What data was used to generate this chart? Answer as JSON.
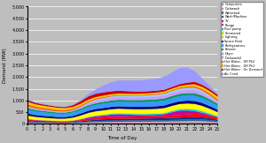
{
  "xlabel": "Time of Day",
  "ylabel": "Demand (MW)",
  "xlim": [
    0,
    25
  ],
  "ylim": [
    0,
    5000
  ],
  "yticks": [
    0,
    500,
    1000,
    1500,
    2000,
    2500,
    3000,
    3500,
    4000,
    4500,
    5000
  ],
  "xticks": [
    0,
    1,
    2,
    3,
    4,
    5,
    6,
    7,
    8,
    9,
    10,
    11,
    12,
    13,
    14,
    15,
    16,
    17,
    18,
    19,
    20,
    21,
    22,
    23,
    24,
    25
  ],
  "hours": [
    0,
    1,
    2,
    3,
    4,
    5,
    6,
    7,
    8,
    9,
    10,
    11,
    12,
    13,
    14,
    15,
    16,
    17,
    18,
    19,
    20,
    21,
    22,
    23,
    24,
    25
  ],
  "categories": [
    "Computers",
    "Dishwash",
    "Waterbed",
    "Wash/Machine",
    "TV",
    "Range",
    "Pool pump",
    "Simmered",
    "Lighting",
    "Space Heat",
    "Refrigerators",
    "Freezer",
    "Dryer",
    "Dishwash2",
    "Hot Water - Off Pk2",
    "Hot Water - Off Pk1",
    "Hot Water - On Demand",
    "Air Cond"
  ],
  "colors": [
    "#999999",
    "#FF99CC",
    "#336699",
    "#003399",
    "#FF0000",
    "#CC0099",
    "#00CCFF",
    "#CCFF00",
    "#FFFF00",
    "#000080",
    "#3399FF",
    "#009966",
    "#CC99FF",
    "#99CCFF",
    "#FF6600",
    "#FFCC00",
    "#CC0000",
    "#9999FF"
  ],
  "data": {
    "Computers": [
      55,
      50,
      48,
      45,
      43,
      43,
      47,
      55,
      65,
      72,
      76,
      78,
      80,
      82,
      82,
      82,
      83,
      85,
      87,
      90,
      93,
      96,
      100,
      95,
      85,
      70
    ],
    "Dishwash": [
      12,
      10,
      8,
      7,
      6,
      6,
      8,
      14,
      20,
      25,
      27,
      29,
      30,
      31,
      32,
      33,
      34,
      35,
      36,
      38,
      40,
      44,
      48,
      44,
      36,
      25
    ],
    "Waterbed": [
      35,
      32,
      30,
      28,
      26,
      26,
      28,
      33,
      40,
      46,
      50,
      53,
      55,
      57,
      58,
      59,
      60,
      62,
      63,
      66,
      68,
      72,
      76,
      72,
      64,
      52
    ],
    "Wash/Machine": [
      25,
      20,
      18,
      16,
      14,
      14,
      17,
      28,
      45,
      58,
      65,
      68,
      70,
      72,
      74,
      75,
      76,
      78,
      80,
      84,
      88,
      92,
      96,
      88,
      72,
      48
    ],
    "TV": [
      70,
      55,
      46,
      42,
      37,
      36,
      39,
      50,
      65,
      74,
      78,
      81,
      83,
      85,
      87,
      89,
      91,
      93,
      97,
      102,
      111,
      120,
      130,
      122,
      103,
      85
    ],
    "Range": [
      25,
      20,
      17,
      15,
      13,
      13,
      18,
      30,
      52,
      70,
      80,
      105,
      115,
      90,
      72,
      63,
      58,
      55,
      72,
      138,
      185,
      168,
      112,
      74,
      45,
      30
    ],
    "Pool pump": [
      8,
      7,
      6,
      5,
      4,
      4,
      7,
      13,
      22,
      26,
      30,
      33,
      35,
      36,
      37,
      38,
      40,
      42,
      44,
      46,
      51,
      56,
      62,
      57,
      48,
      35
    ],
    "Simmered": [
      18,
      15,
      13,
      12,
      10,
      10,
      13,
      17,
      22,
      24,
      26,
      28,
      29,
      30,
      31,
      31,
      32,
      34,
      36,
      38,
      41,
      44,
      46,
      42,
      35,
      26
    ],
    "Lighting": [
      130,
      115,
      106,
      98,
      93,
      97,
      115,
      142,
      160,
      165,
      168,
      170,
      172,
      173,
      174,
      175,
      177,
      179,
      182,
      187,
      192,
      197,
      202,
      193,
      175,
      152
    ],
    "Space Heat": [
      88,
      80,
      75,
      72,
      68,
      65,
      70,
      82,
      92,
      96,
      99,
      101,
      103,
      104,
      105,
      106,
      108,
      110,
      112,
      116,
      120,
      124,
      128,
      123,
      114,
      100
    ],
    "Refrigerators": [
      158,
      150,
      145,
      142,
      138,
      138,
      142,
      150,
      163,
      176,
      184,
      188,
      191,
      193,
      195,
      196,
      198,
      200,
      202,
      207,
      211,
      215,
      220,
      211,
      194,
      172
    ],
    "Freezer": [
      68,
      64,
      60,
      58,
      56,
      56,
      58,
      62,
      67,
      73,
      78,
      82,
      85,
      86,
      88,
      90,
      92,
      94,
      96,
      98,
      100,
      103,
      106,
      101,
      93,
      80
    ],
    "Dryer": [
      52,
      44,
      40,
      36,
      32,
      28,
      32,
      45,
      70,
      88,
      97,
      102,
      104,
      106,
      108,
      110,
      112,
      114,
      116,
      120,
      125,
      130,
      134,
      116,
      89,
      62
    ],
    "Dishwash2": [
      25,
      22,
      18,
      17,
      14,
      14,
      18,
      32,
      52,
      62,
      67,
      70,
      73,
      75,
      77,
      79,
      81,
      83,
      86,
      90,
      95,
      100,
      105,
      96,
      78,
      52
    ],
    "Hot Water - Off Pk2": [
      88,
      80,
      76,
      72,
      68,
      64,
      60,
      56,
      52,
      48,
      43,
      39,
      36,
      34,
      33,
      33,
      34,
      36,
      38,
      42,
      46,
      54,
      63,
      72,
      81,
      86
    ],
    "Hot Water - Off Pk1": [
      105,
      96,
      92,
      88,
      84,
      80,
      76,
      72,
      68,
      64,
      60,
      56,
      54,
      52,
      51,
      51,
      52,
      54,
      56,
      60,
      64,
      72,
      80,
      88,
      97,
      102
    ],
    "Hot Water - On Demand": [
      70,
      62,
      55,
      48,
      43,
      46,
      72,
      108,
      136,
      145,
      136,
      127,
      118,
      110,
      101,
      92,
      87,
      82,
      78,
      74,
      82,
      92,
      102,
      92,
      83,
      78
    ],
    "Air Cond": [
      40,
      32,
      25,
      20,
      16,
      16,
      24,
      50,
      100,
      185,
      295,
      385,
      435,
      455,
      465,
      475,
      495,
      515,
      555,
      615,
      685,
      640,
      455,
      268,
      130,
      65
    ]
  },
  "background_color": "#BEBEBE",
  "plot_bg_color": "#BEBEBE",
  "ylabel_fontsize": 4,
  "xlabel_fontsize": 4,
  "tick_fontsize": 3.5
}
